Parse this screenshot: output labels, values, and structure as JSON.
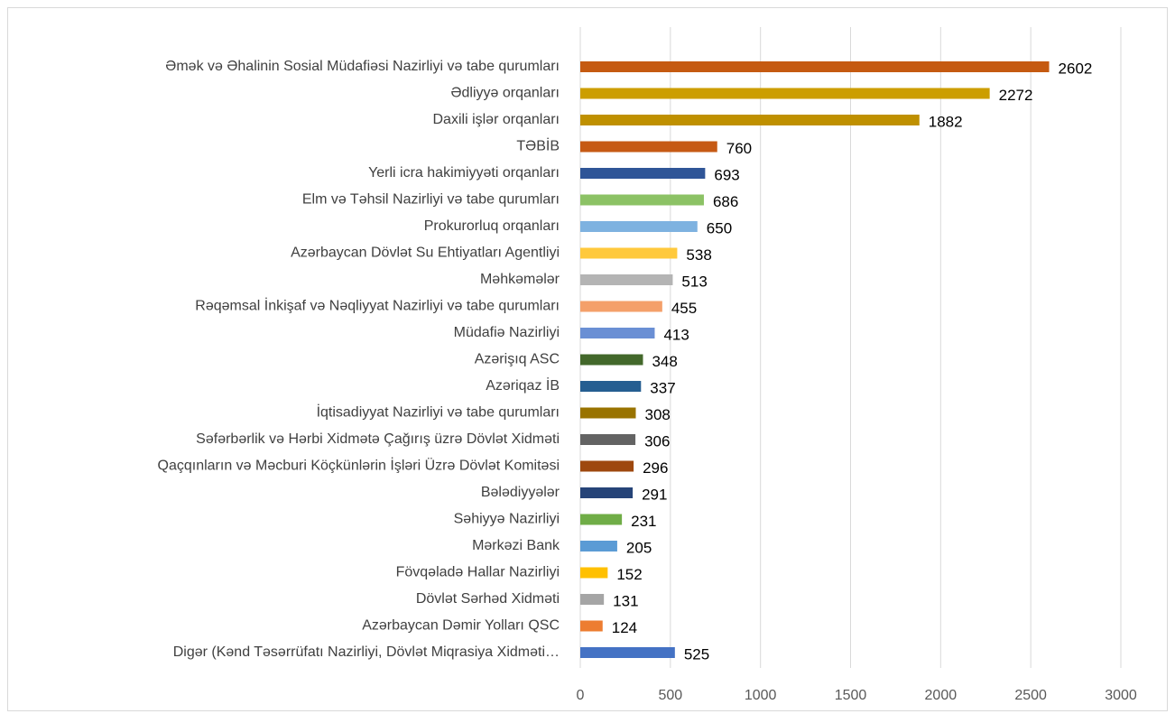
{
  "chart_data": {
    "type": "bar",
    "orientation": "horizontal",
    "categories": [
      "Əmək və Əhalinin Sosial Müdafiəsi Nazirliyi və tabe qurumları",
      "Ədliyyə orqanları",
      "Daxili işlər orqanları",
      "TƏBİB",
      "Yerli icra hakimiyyəti orqanları",
      "Elm və Təhsil Nazirliyi və tabe qurumları",
      "Prokurorluq orqanları",
      "Azərbaycan Dövlət Su Ehtiyatları Agentliyi",
      "Məhkəmələr",
      "Rəqəmsal İnkişaf və Nəqliyyat Nazirliyi və tabe qurumları",
      "Müdafiə Nazirliyi",
      "Azərişıq ASC",
      "Azəriqaz İB",
      "İqtisadiyyat Nazirliyi və tabe qurumları",
      "Səfərbərlik və Hərbi Xidmətə Çağırış üzrə Dövlət Xidməti",
      "Qaçqınların və Məcburi Köçkünlərin İşləri Üzrə Dövlət Komitəsi",
      "Bələdiyyələr",
      "Səhiyyə Nazirliyi",
      "Mərkəzi Bank",
      "Fövqəladə Hallar Nazirliyi",
      "Dövlət Sərhəd Xidməti",
      "Azərbaycan Dəmir Yolları QSC",
      "Digər (Kənd Təsərrüfatı Nazirliyi, Dövlət Miqrasiya Xidməti…"
    ],
    "values": [
      2602,
      2272,
      1882,
      760,
      693,
      686,
      650,
      538,
      513,
      455,
      413,
      348,
      337,
      308,
      306,
      296,
      291,
      231,
      205,
      152,
      131,
      124,
      525
    ],
    "colors": [
      "#c55a11",
      "#cc9e00",
      "#bf9000",
      "#c65a14",
      "#2f5597",
      "#8cc265",
      "#7eb2e0",
      "#ffc93c",
      "#b4b4b4",
      "#f4a06a",
      "#6a8fd4",
      "#43682b",
      "#255e91",
      "#997300",
      "#636363",
      "#9e480e",
      "#264478",
      "#70ad47",
      "#5b9bd5",
      "#ffc000",
      "#a5a5a5",
      "#ed7d31",
      "#4472c4"
    ],
    "xlim": [
      0,
      3000
    ],
    "xticks": [
      0,
      500,
      1000,
      1500,
      2000,
      2500,
      3000
    ],
    "grid": true
  }
}
